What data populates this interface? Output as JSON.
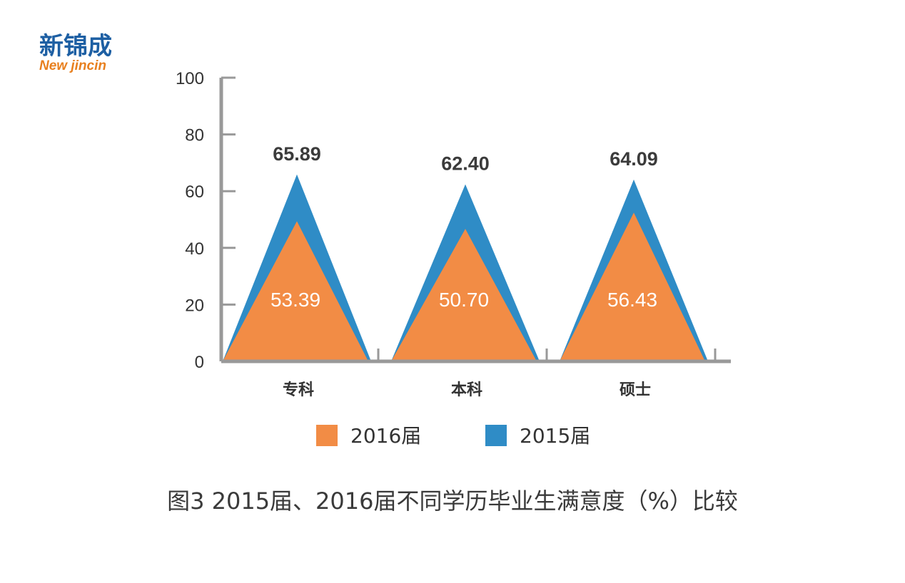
{
  "logo": {
    "text_cn": "新锦成",
    "text_en": "New jincin"
  },
  "caption": "图3  2015届、2016届不同学历毕业生满意度（%）比较",
  "chart_data": {
    "type": "area",
    "subtype": "triangle-peaks",
    "categories": [
      "专科",
      "本科",
      "硕士"
    ],
    "series": [
      {
        "name": "2016届",
        "values": [
          53.39,
          50.7,
          56.43
        ],
        "color": "#f28c45"
      },
      {
        "name": "2015届",
        "values": [
          65.89,
          62.4,
          64.09
        ],
        "color": "#2f8cc6"
      }
    ],
    "value_labels_2016": [
      "53.39",
      "50.70",
      "56.43"
    ],
    "value_labels_2015": [
      "65.89",
      "62.40",
      "64.09"
    ],
    "ylim": [
      0,
      100
    ],
    "yticks": [
      "0",
      "20",
      "40",
      "60",
      "80",
      "100"
    ],
    "grid": false,
    "legend": {
      "position": "bottom",
      "items": [
        "2016届",
        "2015届"
      ]
    },
    "axis_color": "#999999"
  }
}
